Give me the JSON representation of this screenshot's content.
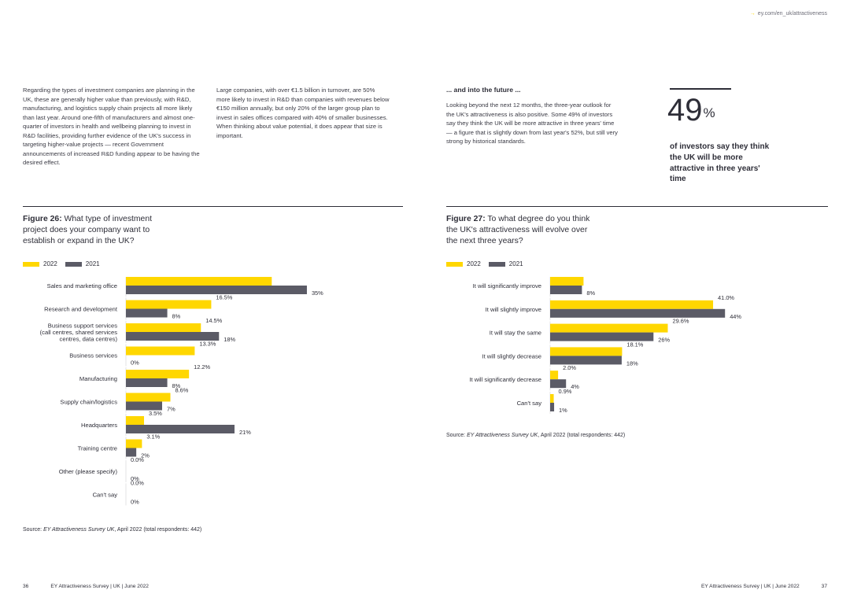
{
  "header": {
    "url": "ey.com/en_uk/attractiveness"
  },
  "colors": {
    "y2022": "#ffd700",
    "y2021": "#5b5b66",
    "text": "#2e2e38"
  },
  "body": {
    "col1": "Regarding the types of investment companies are planning in the UK, these are generally higher value than previously, with R&D, manufacturing, and logistics supply chain projects all more likely than last year. Around one-fifth of manufacturers and almost one-quarter of investors in health and wellbeing planning to invest in R&D facilities, providing further evidence of the UK's success in targeting higher-value projects — recent Government announcements of increased R&D funding appear to be having the desired effect.",
    "col2": "Large companies, with over €1.5 billion in turnover, are 50% more likely to invest in R&D than companies with revenues below €150 million annually, but only 20% of the larger group plan to invest in sales offices compared with 40% of smaller businesses. When thinking about value potential, it does appear that size is important.",
    "future_heading": "... and into the future ...",
    "col3": "Looking beyond the next 12 months, the three-year outlook for the UK's attractiveness is also positive. Some 49% of investors say they think the UK will be more attractive in three years' time — a figure that is slightly down from last year's 52%, but still very strong by historical standards."
  },
  "highlight": {
    "number": "49",
    "unit": "%",
    "caption": "of investors say they think the UK will be more attractive in three years' time"
  },
  "legend": {
    "label_2022": "2022",
    "label_2021": "2021"
  },
  "figures": {
    "fig26": {
      "title_bold": "Figure 26:",
      "title_line1": " What type of investment",
      "title_line2": "project does your company want to",
      "title_line3": "establish or expand in the UK?",
      "source_prefix": "Source: ",
      "source_italic": "EY Attractiveness Survey UK",
      "source_suffix": ", April 2022 (total respondents: 442)"
    },
    "fig27": {
      "title_bold": "Figure 27:",
      "title_line1": " To what degree do you think",
      "title_line2": "the UK's attractiveness will evolve over",
      "title_line3": "the next three years?",
      "source_prefix": "Source: ",
      "source_italic": "EY Attractiveness Survey UK",
      "source_suffix": ", April 2022 (total respondents: 442)"
    }
  },
  "chart_data": [
    {
      "type": "bar",
      "orientation": "horizontal",
      "categories": [
        [
          "Sales and marketing office"
        ],
        [
          "Research and development"
        ],
        [
          "Business support services",
          "(call centres, shared services",
          "centres, data centres)"
        ],
        [
          "Business services"
        ],
        [
          "Manufacturing"
        ],
        [
          "Supply chain/logistics"
        ],
        [
          "Headquarters"
        ],
        [
          "Training centre"
        ],
        [
          "Other (please specify)"
        ],
        [
          "Can't say"
        ]
      ],
      "series": [
        {
          "name": "2022",
          "values": [
            28.2,
            16.5,
            14.5,
            13.3,
            12.2,
            8.6,
            3.5,
            3.1,
            0.0,
            0.0
          ],
          "labels": [
            "28.2%",
            "16.5%",
            "14.5%",
            "13.3%",
            "12.2%",
            "8.6%",
            "3.5%",
            "3.1%",
            "0.0%",
            "0.0%"
          ]
        },
        {
          "name": "2021",
          "values": [
            35,
            8,
            18,
            0,
            8,
            7,
            21,
            2,
            0,
            0
          ],
          "labels": [
            "35%",
            "8%",
            "18%",
            "0%",
            "8%",
            "7%",
            "21%",
            "2%",
            "0%",
            "0%"
          ]
        }
      ],
      "legend": "top-left",
      "grid": false
    },
    {
      "type": "bar",
      "orientation": "horizontal",
      "categories": [
        [
          "It will significantly improve"
        ],
        [
          "It will slightly improve"
        ],
        [
          "It will stay the same"
        ],
        [
          "It will slightly decrease"
        ],
        [
          "It will significantly decrease"
        ],
        [
          "Can't say"
        ]
      ],
      "series": [
        {
          "name": "2022",
          "values": [
            8.4,
            41.0,
            29.6,
            18.1,
            2.0,
            0.9
          ],
          "labels": [
            "8.4%",
            "41.0%",
            "29.6%",
            "18.1%",
            "2.0%",
            "0.9%"
          ]
        },
        {
          "name": "2021",
          "values": [
            8,
            44,
            26,
            18,
            4,
            1
          ],
          "labels": [
            "8%",
            "44%",
            "26%",
            "18%",
            "4%",
            "1%"
          ]
        }
      ],
      "legend": "top-left",
      "grid": false
    }
  ],
  "footer": {
    "left_page": "36",
    "left_text": "EY Attractiveness Survey | UK | June 2022",
    "right_text": "EY Attractiveness Survey | UK | June 2022",
    "right_page": "37"
  }
}
